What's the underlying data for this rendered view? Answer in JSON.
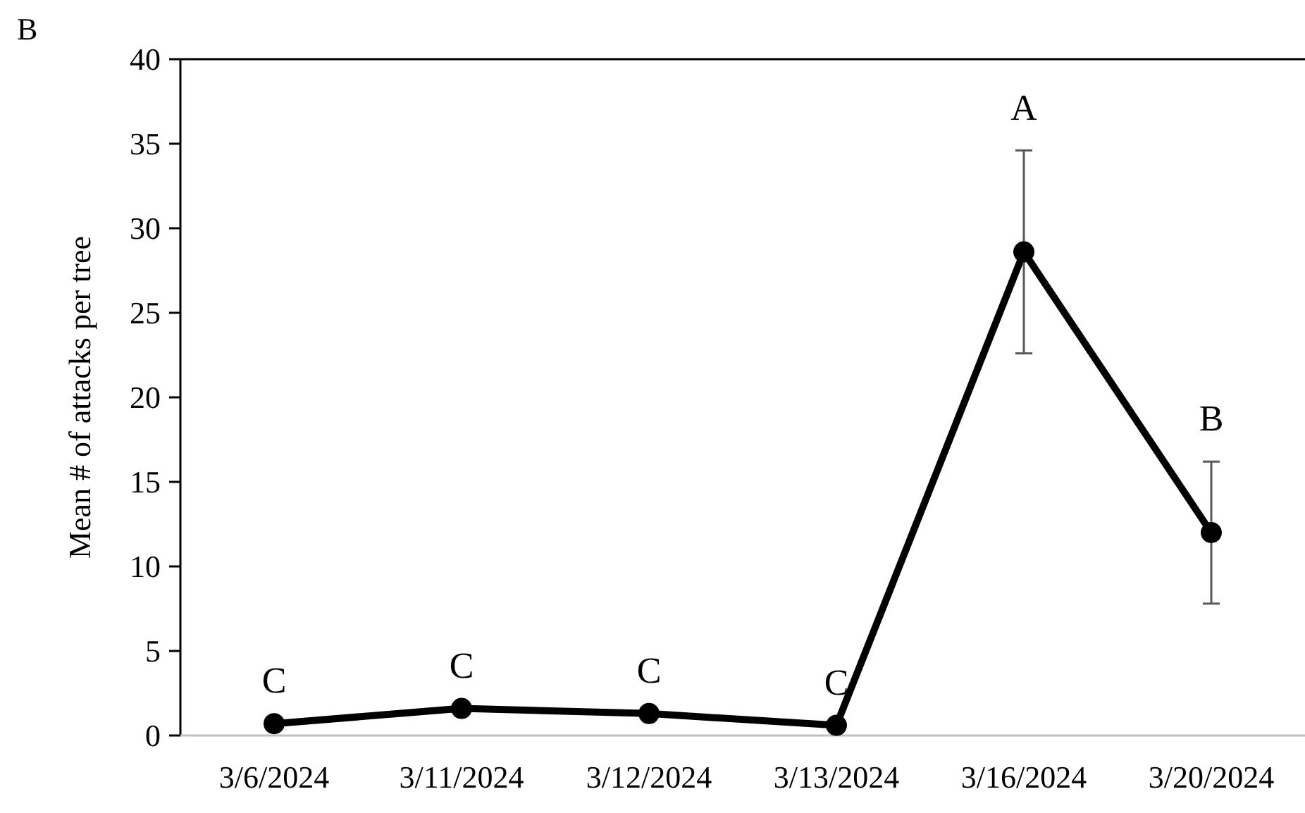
{
  "chart_data": {
    "type": "line",
    "ylabel": "Mean # of attacks per tree",
    "categories": [
      "3/6/2024",
      "3/11/2024",
      "3/12/2024",
      "3/13/2024",
      "3/16/2024",
      "3/20/2024"
    ],
    "series": [
      {
        "color": "#000000",
        "values": [
          0.7,
          1.6,
          1.3,
          0.6,
          28.6,
          12.0
        ],
        "errors": [
          null,
          null,
          null,
          null,
          6.0,
          4.2
        ],
        "value_labels": [
          "C",
          "C",
          "C",
          "C",
          "A",
          "B"
        ]
      }
    ],
    "ylim": [
      0,
      40
    ],
    "yticks": [
      0,
      5,
      10,
      15,
      20,
      25,
      30,
      35,
      40
    ],
    "grid": false,
    "marker": "circle",
    "line_style": "solid",
    "annotations": [
      "B"
    ]
  }
}
